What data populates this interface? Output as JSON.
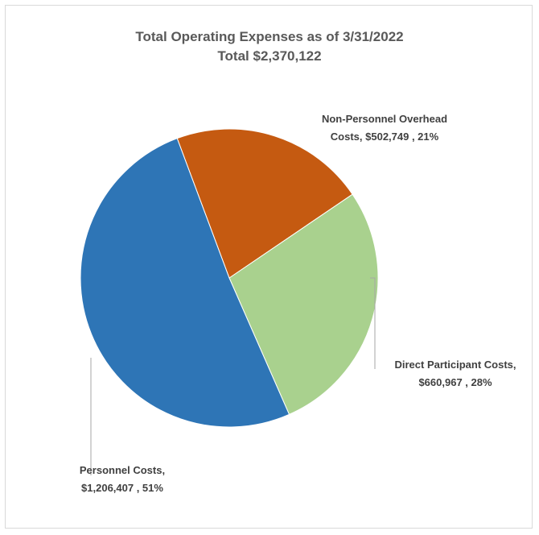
{
  "chart_data": {
    "type": "pie",
    "title": "Total Operating Expenses as of 3/31/2022",
    "subtitle": "Total $2,370,122",
    "series": [
      {
        "label_line1": "Non-Personnel Overhead",
        "label_line2": "Costs,  $502,749 , 21%",
        "value": 502749,
        "percent": 21,
        "color": "#c55a11"
      },
      {
        "label_line1": "Direct Participant Costs,",
        "label_line2": "$660,967 , 28%",
        "value": 660967,
        "percent": 28,
        "color": "#a9d18e"
      },
      {
        "label_line1": "Personnel Costs,",
        "label_line2": "$1,206,407 , 51%",
        "value": 1206407,
        "percent": 51,
        "color": "#2e75b6"
      }
    ]
  }
}
